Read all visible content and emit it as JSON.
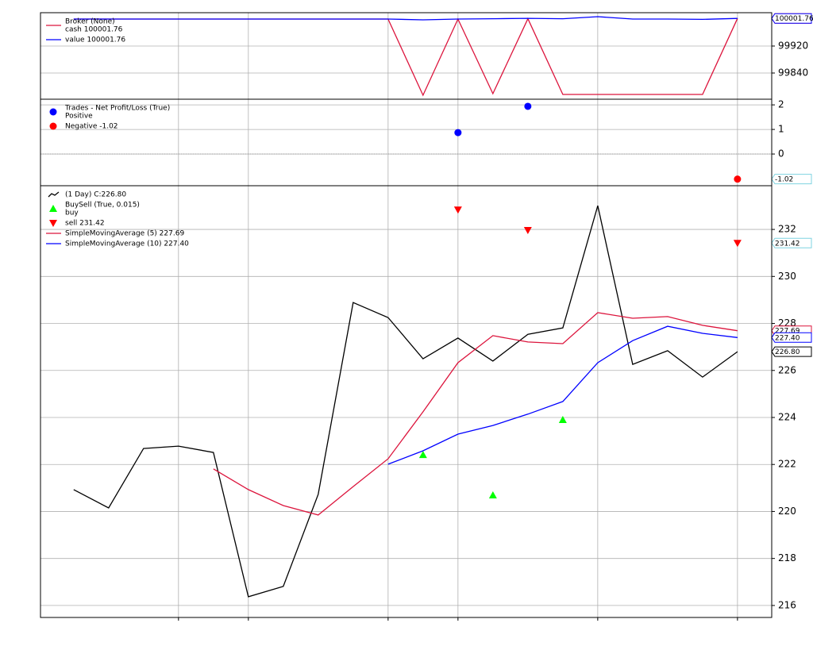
{
  "chart_data": [
    {
      "type": "line",
      "x": [
        0,
        1,
        2,
        3,
        4,
        5,
        6,
        7,
        8,
        9,
        10,
        11,
        12,
        13,
        14,
        15,
        16,
        17,
        18,
        19
      ],
      "xlim": [
        -0.95,
        19.98
      ],
      "xticks": [
        3,
        5,
        9,
        11,
        15,
        19
      ],
      "ylim": [
        99762.35,
        100018.8
      ],
      "yticks": [
        99840,
        99920
      ],
      "grid": true,
      "legend": "upper left",
      "series": [
        {
          "name": "cash 100001.76",
          "legend_title": "Broker (None)",
          "style": "line",
          "color": "#dc143c",
          "values": [
            100000,
            100000,
            100000,
            100000,
            100000,
            100000,
            100000,
            100000,
            100000,
            100000,
            99774.1,
            100000,
            99778.8,
            100000.9,
            99776.5,
            99776.5,
            99776.5,
            99776.5,
            99776.5,
            100001.76
          ]
        },
        {
          "name": "value 100001.76",
          "style": "line",
          "color": "#0000ff",
          "values": [
            100000,
            100000,
            100000,
            100000,
            100000,
            100000,
            100000,
            100000,
            100000,
            100000,
            99997.6,
            100000,
            100001,
            100002,
            100001,
            100007,
            100000,
            100000,
            99999,
            100001.76
          ]
        }
      ]
    },
    {
      "type": "scatter",
      "x": [
        0,
        1,
        2,
        3,
        4,
        5,
        6,
        7,
        8,
        9,
        10,
        11,
        12,
        13,
        14,
        15,
        16,
        17,
        18,
        19
      ],
      "xlim": [
        -0.95,
        19.98
      ],
      "xticks": [
        3,
        5,
        9,
        11,
        15,
        19
      ],
      "ylim": [
        -1.29,
        2.23
      ],
      "yticks": [
        0,
        1,
        2
      ],
      "grid": true,
      "legend": "upper left",
      "series": [
        {
          "name": "Positive",
          "legend_title": "Trades - Net Profit/Loss (True)",
          "style": "dot",
          "color": "#0000ff",
          "values": [
            null,
            null,
            null,
            null,
            null,
            null,
            null,
            null,
            null,
            null,
            null,
            0.87,
            null,
            1.94,
            null,
            null,
            null,
            null,
            null,
            null
          ]
        },
        {
          "name": "Negative -1.02",
          "style": "dot",
          "color": "#ff0000",
          "values": [
            null,
            null,
            null,
            null,
            null,
            null,
            null,
            null,
            null,
            null,
            null,
            null,
            null,
            null,
            null,
            null,
            null,
            null,
            null,
            -1.02
          ]
        }
      ]
    },
    {
      "type": "line",
      "x": [
        0,
        1,
        2,
        3,
        4,
        5,
        6,
        7,
        8,
        9,
        10,
        11,
        12,
        13,
        14,
        15,
        16,
        17,
        18,
        19
      ],
      "xlim": [
        -0.95,
        19.98
      ],
      "xticks": [
        3,
        5,
        9,
        11,
        15,
        19
      ],
      "ylim": [
        215.49,
        233.86
      ],
      "yticks": [
        216,
        218,
        220,
        222,
        224,
        226,
        228,
        230,
        232
      ],
      "grid": true,
      "legend": "upper left",
      "series": [
        {
          "name": " (1 Day) C:226.80",
          "style": "line",
          "color": "#000000",
          "values": [
            220.93,
            220.15,
            222.68,
            222.78,
            222.51,
            216.37,
            216.81,
            220.73,
            228.89,
            228.25,
            226.5,
            227.38,
            226.4,
            227.54,
            227.81,
            233.01,
            226.26,
            226.84,
            225.72,
            226.8
          ],
          "value_labels": [
            null,
            null,
            null,
            null,
            null,
            null,
            null,
            null,
            null,
            null,
            null,
            null,
            null,
            null,
            null,
            null,
            null,
            null,
            null,
            "226.80"
          ]
        },
        {
          "name": "buy",
          "legend_title": "BuySell (True, 0.015)",
          "style": "marker-up",
          "color": "#00ff00",
          "values": [
            null,
            null,
            null,
            null,
            null,
            null,
            null,
            null,
            null,
            null,
            222.41,
            null,
            220.69,
            null,
            223.9,
            null,
            null,
            null,
            null,
            null
          ]
        },
        {
          "name": "sell 231.42",
          "style": "marker-down",
          "color": "#ff0000",
          "values": [
            null,
            null,
            null,
            null,
            null,
            null,
            null,
            null,
            null,
            null,
            null,
            232.84,
            null,
            231.97,
            null,
            null,
            null,
            null,
            null,
            231.42
          ]
        },
        {
          "name": "SimpleMovingAverage (5) 227.69",
          "style": "line",
          "color": "#dc143c",
          "values": [
            null,
            null,
            null,
            null,
            221.81,
            220.93,
            220.25,
            219.85,
            221.06,
            222.24,
            224.24,
            226.33,
            227.48,
            227.21,
            227.14,
            228.46,
            228.22,
            228.29,
            227.92,
            227.69
          ]
        },
        {
          "name": "SimpleMovingAverage (10) 227.40",
          "style": "line",
          "color": "#0000ff",
          "values": [
            null,
            null,
            null,
            null,
            null,
            null,
            null,
            null,
            null,
            222.01,
            222.58,
            223.29,
            223.66,
            224.14,
            224.68,
            226.33,
            227.27,
            227.88,
            227.58,
            227.4
          ],
          "value_labels": [
            null,
            null,
            null,
            null,
            null,
            null,
            null,
            null,
            null,
            null,
            null,
            null,
            null,
            null,
            null,
            null,
            null,
            null,
            null,
            "227.40"
          ]
        }
      ]
    }
  ]
}
